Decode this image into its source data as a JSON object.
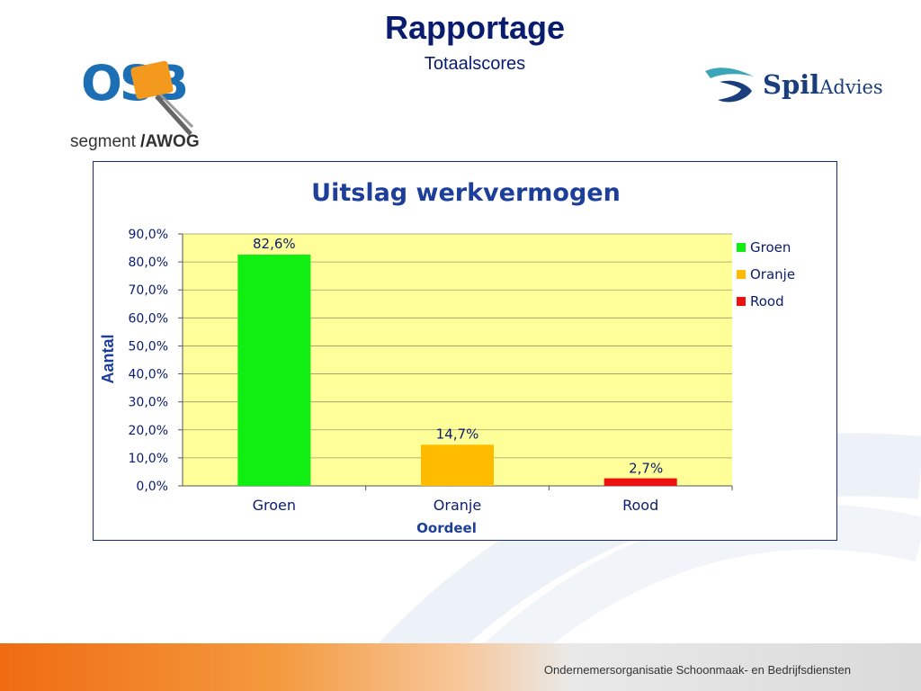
{
  "header": {
    "title": "Rapportage",
    "subtitle": "Totaalscores"
  },
  "logos": {
    "osb": {
      "main": "OSB",
      "segment": "segment",
      "awog": "AWOG"
    },
    "spil": {
      "spil": "Spil",
      "advies": "Advies"
    }
  },
  "chart_data": {
    "type": "bar",
    "title": "Uitslag werkvermogen",
    "xlabel": "Oordeel",
    "ylabel": "Aantal",
    "categories": [
      "Groen",
      "Oranje",
      "Rood"
    ],
    "values": [
      82.6,
      14.7,
      2.7
    ],
    "data_labels": [
      "82,6%",
      "14,7%",
      "2,7%"
    ],
    "colors": [
      "#11ee11",
      "#ffbb00",
      "#ee1111"
    ],
    "ylim": [
      0,
      90
    ],
    "yticks": [
      0,
      10,
      20,
      30,
      40,
      50,
      60,
      70,
      80,
      90
    ],
    "ytick_labels": [
      "0,0%",
      "10,0%",
      "20,0%",
      "30,0%",
      "40,0%",
      "50,0%",
      "60,0%",
      "70,0%",
      "80,0%",
      "90,0%"
    ],
    "grid": true,
    "plot_background": "#ffff99",
    "legend": {
      "placement": "right",
      "entries": [
        "Groen",
        "Oranje",
        "Rood"
      ]
    }
  },
  "footer": {
    "text": "Ondernemersorganisatie Schoonmaak- en Bedrijfsdiensten"
  }
}
